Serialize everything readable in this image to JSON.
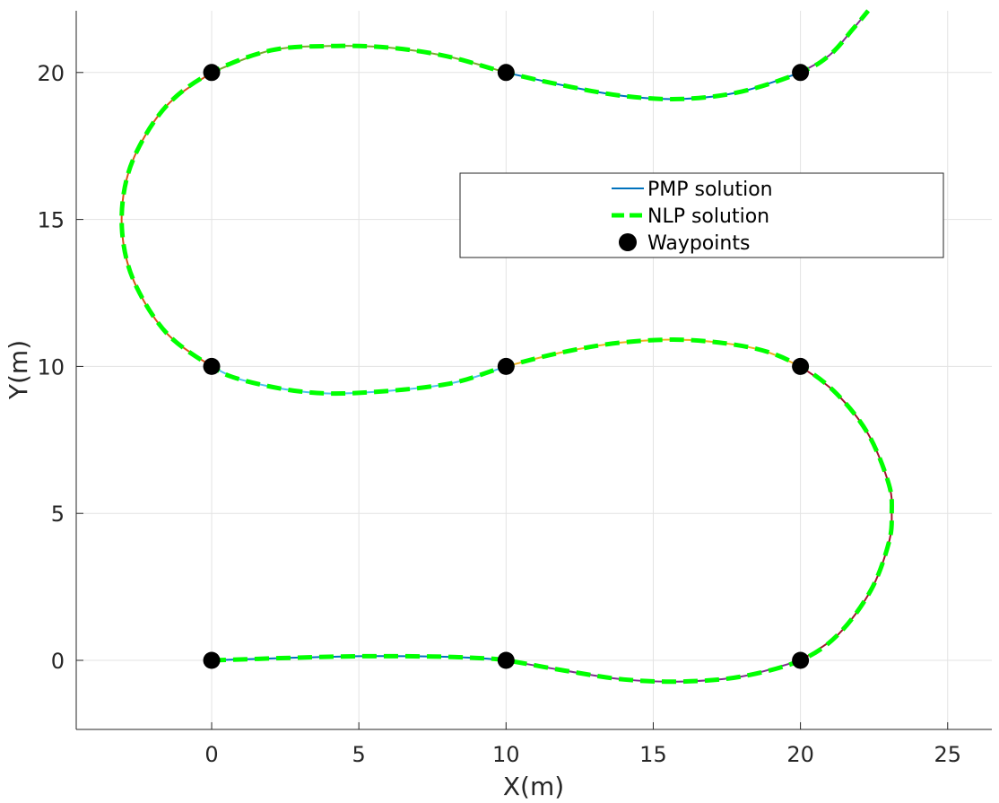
{
  "chart_data": {
    "type": "line",
    "title": "",
    "xlabel": "X(m)",
    "ylabel": "Y(m)",
    "xlim": [
      -4.6,
      26.5
    ],
    "ylim": [
      -2.35,
      22.1
    ],
    "xticks": [
      0,
      5,
      10,
      15,
      20,
      25
    ],
    "yticks": [
      0,
      5,
      10,
      15,
      20
    ],
    "grid": true,
    "legend_position": "upper-right",
    "legend": [
      {
        "label": "PMP solution",
        "style": "solid",
        "color": "#0072BD"
      },
      {
        "label": "NLP solution",
        "style": "dashed",
        "color": "#00FF00"
      },
      {
        "label": "Waypoints",
        "style": "marker",
        "color": "#000000"
      }
    ],
    "pmp_segments": [
      {
        "color": "#0072BD",
        "points": [
          [
            0,
            0
          ],
          [
            2.5,
            0.08
          ],
          [
            5,
            0.14
          ],
          [
            7.5,
            0.13
          ],
          [
            9,
            0.08
          ],
          [
            10,
            0
          ]
        ]
      },
      {
        "color": "#7E2F8E",
        "points": [
          [
            10,
            0
          ],
          [
            12,
            -0.35
          ],
          [
            14,
            -0.65
          ],
          [
            16,
            -0.72
          ],
          [
            18,
            -0.55
          ],
          [
            20,
            0
          ]
        ]
      },
      {
        "color": "#A2142F",
        "points": [
          [
            20,
            0
          ],
          [
            21.3,
            0.9
          ],
          [
            22.4,
            2.4
          ],
          [
            23,
            4
          ],
          [
            23.1,
            5
          ],
          [
            23,
            6
          ],
          [
            22.3,
            7.7
          ],
          [
            21.2,
            9.1
          ],
          [
            20,
            10
          ]
        ]
      },
      {
        "color": "#EDB120",
        "points": [
          [
            20,
            10
          ],
          [
            18.5,
            10.6
          ],
          [
            16.2,
            10.9
          ],
          [
            14,
            10.82
          ],
          [
            12,
            10.5
          ],
          [
            10,
            10
          ]
        ]
      },
      {
        "color": "#4DBEEE",
        "points": [
          [
            10,
            10
          ],
          [
            8,
            9.4
          ],
          [
            5,
            9.1
          ],
          [
            3,
            9.15
          ],
          [
            1,
            9.55
          ],
          [
            0,
            10
          ]
        ]
      },
      {
        "color": "#D95319",
        "points": [
          [
            0,
            10
          ],
          [
            -1.5,
            11.1
          ],
          [
            -2.55,
            12.7
          ],
          [
            -3,
            14.2
          ],
          [
            -3,
            15.8
          ],
          [
            -2.55,
            17.3
          ],
          [
            -1.5,
            18.9
          ],
          [
            0,
            20
          ]
        ]
      },
      {
        "color": "#77AC30",
        "points": [
          [
            0,
            20
          ],
          [
            2,
            20.75
          ],
          [
            4,
            20.9
          ],
          [
            6,
            20.85
          ],
          [
            8,
            20.55
          ],
          [
            10,
            20
          ]
        ]
      },
      {
        "color": "#0072BD",
        "points": [
          [
            10,
            20
          ],
          [
            12,
            19.55
          ],
          [
            14,
            19.2
          ],
          [
            16,
            19.1
          ],
          [
            18,
            19.35
          ],
          [
            20,
            20
          ]
        ]
      },
      {
        "color": "#7E2F8E",
        "points": [
          [
            20,
            20
          ],
          [
            21,
            20.6
          ],
          [
            21.8,
            21.5
          ],
          [
            22.3,
            22.1
          ]
        ]
      }
    ],
    "nlp_solution": {
      "color": "#00FF00",
      "points": [
        [
          0,
          0
        ],
        [
          2.5,
          0.08
        ],
        [
          5,
          0.14
        ],
        [
          7.5,
          0.13
        ],
        [
          9,
          0.08
        ],
        [
          10,
          0
        ],
        [
          12,
          -0.35
        ],
        [
          14,
          -0.65
        ],
        [
          16,
          -0.72
        ],
        [
          18,
          -0.55
        ],
        [
          20,
          0
        ],
        [
          21.3,
          0.9
        ],
        [
          22.4,
          2.4
        ],
        [
          23,
          4
        ],
        [
          23.1,
          5
        ],
        [
          23,
          6
        ],
        [
          22.3,
          7.7
        ],
        [
          21.2,
          9.1
        ],
        [
          20,
          10
        ],
        [
          18.5,
          10.6
        ],
        [
          16.2,
          10.9
        ],
        [
          14,
          10.82
        ],
        [
          12,
          10.5
        ],
        [
          10,
          10
        ],
        [
          8,
          9.4
        ],
        [
          5,
          9.1
        ],
        [
          3,
          9.15
        ],
        [
          1,
          9.55
        ],
        [
          0,
          10
        ],
        [
          -1.5,
          11.1
        ],
        [
          -2.55,
          12.7
        ],
        [
          -3,
          14.2
        ],
        [
          -3,
          15.8
        ],
        [
          -2.55,
          17.3
        ],
        [
          -1.5,
          18.9
        ],
        [
          0,
          20
        ],
        [
          2,
          20.75
        ],
        [
          4,
          20.9
        ],
        [
          6,
          20.85
        ],
        [
          8,
          20.55
        ],
        [
          10,
          20
        ],
        [
          12,
          19.55
        ],
        [
          14,
          19.2
        ],
        [
          16,
          19.1
        ],
        [
          18,
          19.35
        ],
        [
          20,
          20
        ],
        [
          21,
          20.6
        ],
        [
          21.8,
          21.5
        ],
        [
          22.3,
          22.1
        ]
      ]
    },
    "waypoints": [
      [
        0,
        0
      ],
      [
        10,
        0
      ],
      [
        20,
        0
      ],
      [
        20,
        10
      ],
      [
        10,
        10
      ],
      [
        0,
        10
      ],
      [
        0,
        20
      ],
      [
        10,
        20
      ],
      [
        20,
        20
      ]
    ]
  }
}
